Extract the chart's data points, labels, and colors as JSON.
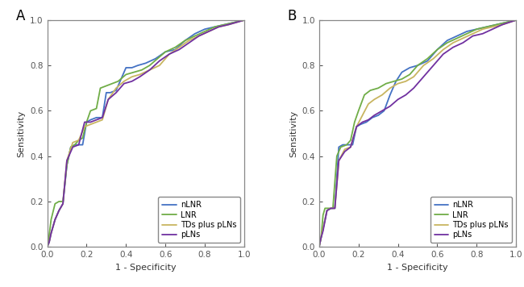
{
  "panel_A": {
    "title": "A",
    "nLNR": {
      "fpr": [
        0.0,
        0.01,
        0.02,
        0.04,
        0.06,
        0.08,
        0.1,
        0.12,
        0.14,
        0.16,
        0.18,
        0.2,
        0.22,
        0.25,
        0.28,
        0.3,
        0.32,
        0.35,
        0.38,
        0.4,
        0.43,
        0.46,
        0.5,
        0.55,
        0.6,
        0.65,
        0.7,
        0.75,
        0.8,
        0.85,
        0.9,
        0.95,
        1.0
      ],
      "tpr": [
        0.0,
        0.02,
        0.06,
        0.12,
        0.16,
        0.19,
        0.36,
        0.44,
        0.45,
        0.45,
        0.45,
        0.55,
        0.56,
        0.57,
        0.57,
        0.68,
        0.68,
        0.69,
        0.75,
        0.79,
        0.79,
        0.8,
        0.81,
        0.83,
        0.86,
        0.87,
        0.91,
        0.94,
        0.96,
        0.97,
        0.98,
        0.99,
        1.0
      ],
      "color": "#4472C4"
    },
    "LNR": {
      "fpr": [
        0.0,
        0.01,
        0.02,
        0.04,
        0.06,
        0.08,
        0.1,
        0.12,
        0.14,
        0.16,
        0.18,
        0.2,
        0.22,
        0.25,
        0.27,
        0.3,
        0.33,
        0.36,
        0.4,
        0.44,
        0.48,
        0.52,
        0.56,
        0.6,
        0.65,
        0.7,
        0.75,
        0.8,
        0.85,
        0.9,
        0.95,
        1.0
      ],
      "tpr": [
        0.0,
        0.05,
        0.12,
        0.19,
        0.2,
        0.2,
        0.36,
        0.44,
        0.45,
        0.47,
        0.48,
        0.55,
        0.6,
        0.61,
        0.7,
        0.71,
        0.72,
        0.73,
        0.76,
        0.77,
        0.78,
        0.8,
        0.83,
        0.86,
        0.88,
        0.91,
        0.93,
        0.95,
        0.97,
        0.98,
        0.99,
        1.0
      ],
      "color": "#70AD47"
    },
    "TDs_plus_pLNs": {
      "fpr": [
        0.0,
        0.01,
        0.02,
        0.04,
        0.06,
        0.08,
        0.1,
        0.13,
        0.16,
        0.19,
        0.22,
        0.25,
        0.28,
        0.31,
        0.35,
        0.39,
        0.43,
        0.47,
        0.52,
        0.57,
        0.62,
        0.67,
        0.72,
        0.77,
        0.82,
        0.87,
        0.92,
        0.96,
        1.0
      ],
      "tpr": [
        0.0,
        0.02,
        0.06,
        0.12,
        0.16,
        0.19,
        0.38,
        0.46,
        0.47,
        0.53,
        0.54,
        0.55,
        0.56,
        0.65,
        0.7,
        0.73,
        0.75,
        0.76,
        0.78,
        0.8,
        0.85,
        0.88,
        0.91,
        0.93,
        0.95,
        0.97,
        0.98,
        0.99,
        1.0
      ],
      "color": "#C8B560"
    },
    "pLNs": {
      "fpr": [
        0.0,
        0.01,
        0.02,
        0.04,
        0.06,
        0.08,
        0.1,
        0.13,
        0.16,
        0.19,
        0.22,
        0.25,
        0.28,
        0.31,
        0.35,
        0.39,
        0.43,
        0.47,
        0.52,
        0.57,
        0.62,
        0.67,
        0.72,
        0.77,
        0.82,
        0.87,
        0.92,
        0.96,
        1.0
      ],
      "tpr": [
        0.0,
        0.02,
        0.06,
        0.12,
        0.16,
        0.19,
        0.38,
        0.44,
        0.45,
        0.55,
        0.55,
        0.56,
        0.57,
        0.65,
        0.68,
        0.72,
        0.73,
        0.75,
        0.78,
        0.82,
        0.85,
        0.87,
        0.9,
        0.93,
        0.95,
        0.97,
        0.98,
        0.99,
        1.0
      ],
      "color": "#7030A0"
    }
  },
  "panel_B": {
    "title": "B",
    "nLNR": {
      "fpr": [
        0.0,
        0.01,
        0.02,
        0.04,
        0.06,
        0.08,
        0.1,
        0.12,
        0.15,
        0.17,
        0.19,
        0.21,
        0.24,
        0.27,
        0.3,
        0.33,
        0.36,
        0.39,
        0.42,
        0.46,
        0.5,
        0.55,
        0.6,
        0.65,
        0.7,
        0.75,
        0.8,
        0.85,
        0.9,
        0.95,
        1.0
      ],
      "tpr": [
        0.0,
        0.04,
        0.08,
        0.16,
        0.17,
        0.17,
        0.44,
        0.45,
        0.45,
        0.45,
        0.53,
        0.54,
        0.55,
        0.57,
        0.58,
        0.6,
        0.67,
        0.73,
        0.77,
        0.79,
        0.8,
        0.82,
        0.87,
        0.91,
        0.93,
        0.95,
        0.96,
        0.97,
        0.98,
        0.99,
        1.0
      ],
      "color": "#4472C4"
    },
    "LNR": {
      "fpr": [
        0.0,
        0.01,
        0.02,
        0.03,
        0.05,
        0.07,
        0.09,
        0.11,
        0.14,
        0.16,
        0.18,
        0.2,
        0.23,
        0.26,
        0.3,
        0.34,
        0.38,
        0.42,
        0.46,
        0.5,
        0.55,
        0.6,
        0.65,
        0.7,
        0.75,
        0.8,
        0.85,
        0.9,
        0.95,
        1.0
      ],
      "tpr": [
        0.0,
        0.04,
        0.14,
        0.17,
        0.17,
        0.17,
        0.4,
        0.44,
        0.45,
        0.47,
        0.55,
        0.6,
        0.67,
        0.69,
        0.7,
        0.72,
        0.73,
        0.74,
        0.76,
        0.8,
        0.83,
        0.87,
        0.9,
        0.92,
        0.94,
        0.96,
        0.97,
        0.98,
        0.99,
        1.0
      ],
      "color": "#70AD47"
    },
    "TDs_plus_pLNs": {
      "fpr": [
        0.0,
        0.01,
        0.02,
        0.04,
        0.06,
        0.08,
        0.1,
        0.13,
        0.16,
        0.19,
        0.22,
        0.25,
        0.28,
        0.32,
        0.36,
        0.4,
        0.44,
        0.48,
        0.53,
        0.58,
        0.63,
        0.68,
        0.73,
        0.78,
        0.83,
        0.88,
        0.93,
        1.0
      ],
      "tpr": [
        0.0,
        0.04,
        0.08,
        0.16,
        0.17,
        0.17,
        0.38,
        0.43,
        0.44,
        0.53,
        0.58,
        0.63,
        0.65,
        0.67,
        0.7,
        0.72,
        0.73,
        0.75,
        0.8,
        0.83,
        0.87,
        0.9,
        0.92,
        0.94,
        0.96,
        0.97,
        0.98,
        1.0
      ],
      "color": "#C8B560"
    },
    "pLNs": {
      "fpr": [
        0.0,
        0.01,
        0.02,
        0.04,
        0.06,
        0.08,
        0.1,
        0.13,
        0.16,
        0.19,
        0.22,
        0.25,
        0.28,
        0.32,
        0.36,
        0.4,
        0.44,
        0.48,
        0.53,
        0.58,
        0.63,
        0.68,
        0.73,
        0.78,
        0.83,
        0.88,
        0.93,
        1.0
      ],
      "tpr": [
        0.0,
        0.04,
        0.07,
        0.16,
        0.17,
        0.17,
        0.38,
        0.42,
        0.44,
        0.53,
        0.55,
        0.56,
        0.58,
        0.6,
        0.62,
        0.65,
        0.67,
        0.7,
        0.75,
        0.8,
        0.85,
        0.88,
        0.9,
        0.93,
        0.94,
        0.96,
        0.98,
        1.0
      ],
      "color": "#7030A0"
    }
  },
  "legend_labels": [
    "nLNR",
    "LNR",
    "TDs plus pLNs",
    "pLNs"
  ],
  "xlabel": "1 - Specificity",
  "ylabel": "Sensitivity",
  "xlim": [
    0.0,
    1.0
  ],
  "ylim": [
    0.0,
    1.0
  ],
  "xticks": [
    0.0,
    0.2,
    0.4,
    0.6,
    0.8,
    1.0
  ],
  "yticks": [
    0.0,
    0.2,
    0.4,
    0.6,
    0.8,
    1.0
  ],
  "line_width": 1.3,
  "background_color": "#ffffff",
  "axes_color": "#888888",
  "tick_color": "#555555",
  "label_fontsize": 8,
  "tick_fontsize": 7.5,
  "legend_fontsize": 7,
  "panel_label_fontsize": 12
}
